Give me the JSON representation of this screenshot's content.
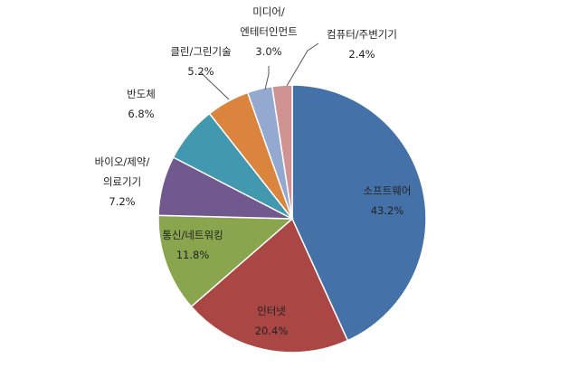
{
  "chart_data": {
    "type": "pie",
    "title": "",
    "slices": [
      {
        "label": "소프트웨어",
        "value": 43.2,
        "value_text": "43.2%",
        "color": "#4472A8"
      },
      {
        "label": "인터넷",
        "value": 20.4,
        "value_text": "20.4%",
        "color": "#AA4744"
      },
      {
        "label": "통신/네트워킹",
        "value": 11.8,
        "value_text": "11.8%",
        "color": "#89A54E"
      },
      {
        "label": "바이오/제약/\n의료기기",
        "value": 7.2,
        "value_text": "7.2%",
        "color": "#71588F"
      },
      {
        "label": "반도체",
        "value": 6.8,
        "value_text": "6.8%",
        "color": "#4198AF"
      },
      {
        "label": "클린/그린기술",
        "value": 5.2,
        "value_text": "5.2%",
        "color": "#DB843D"
      },
      {
        "label": "미디어/\n엔테터인먼트",
        "value": 3.0,
        "value_text": "3.0%",
        "color": "#93A9CF"
      },
      {
        "label": "컴퓨터/주변기기",
        "value": 2.4,
        "value_text": "2.4%",
        "color": "#D09392"
      }
    ]
  }
}
